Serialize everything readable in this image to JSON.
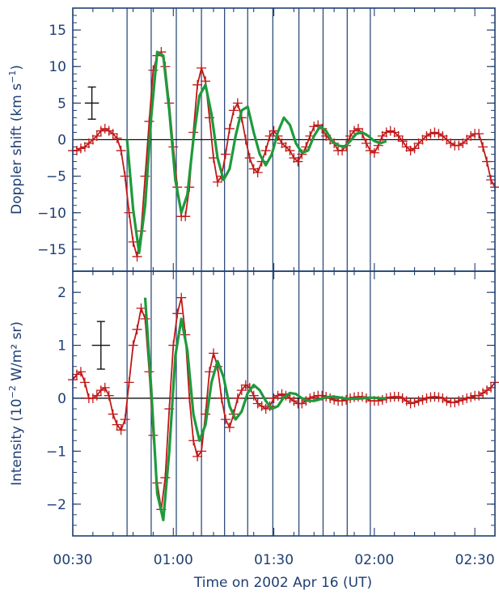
{
  "chart_data": [
    {
      "type": "line",
      "title": "",
      "ylabel_text": "Doppler shift (km s",
      "ylabel_sup": "−1",
      "ylabel_close": ")",
      "xlabel": "",
      "xlim": [
        0.0,
        2.1
      ],
      "ylim": [
        -18,
        18
      ],
      "yticks": [
        -15,
        -10,
        -5,
        0,
        5,
        10,
        15
      ],
      "ytick_labels": [
        "−15",
        "−10",
        "−5",
        "0",
        "5",
        "10",
        "15"
      ],
      "vertical_lines_x": [
        0.27,
        0.39,
        0.515,
        0.64,
        0.755,
        0.87,
        0.995,
        1.125,
        1.245,
        1.365,
        1.48
      ],
      "zero_line": true,
      "error_bar": {
        "x": 0.095,
        "y": 5,
        "yerr": 2.2,
        "xerr": 0.035
      },
      "series": [
        {
          "color": "#c01818",
          "marker": "plus",
          "style": "data",
          "x": [
            0.0,
            0.02,
            0.04,
            0.06,
            0.08,
            0.1,
            0.12,
            0.14,
            0.16,
            0.18,
            0.2,
            0.22,
            0.24,
            0.26,
            0.28,
            0.3,
            0.32,
            0.34,
            0.36,
            0.38,
            0.4,
            0.42,
            0.44,
            0.46,
            0.48,
            0.5,
            0.52,
            0.54,
            0.56,
            0.58,
            0.6,
            0.62,
            0.64,
            0.66,
            0.68,
            0.7,
            0.72,
            0.74,
            0.76,
            0.78,
            0.8,
            0.82,
            0.84,
            0.86,
            0.88,
            0.9,
            0.92,
            0.94,
            0.96,
            0.98,
            1.0,
            1.02,
            1.04,
            1.06,
            1.08,
            1.1,
            1.12,
            1.14,
            1.16,
            1.18,
            1.2,
            1.22,
            1.24,
            1.26,
            1.28,
            1.3,
            1.32,
            1.34,
            1.36,
            1.38,
            1.4,
            1.42,
            1.44,
            1.46,
            1.48,
            1.5,
            1.52,
            1.54,
            1.56,
            1.58,
            1.6,
            1.62,
            1.64,
            1.66,
            1.68,
            1.7,
            1.72,
            1.74,
            1.76,
            1.78,
            1.8,
            1.82,
            1.84,
            1.86,
            1.88,
            1.9,
            1.92,
            1.94,
            1.96,
            1.98,
            2.0,
            2.02,
            2.04,
            2.06,
            2.08,
            2.1
          ],
          "y": [
            -1.5,
            -1.5,
            -1.2,
            -1.0,
            -0.5,
            0.0,
            0.5,
            1.2,
            1.5,
            1.2,
            0.8,
            0.2,
            -1.5,
            -5.0,
            -10.0,
            -14.0,
            -16.0,
            -12.5,
            -5.0,
            2.5,
            9.5,
            11.5,
            12.0,
            10.0,
            5.0,
            -1.0,
            -6.5,
            -10.5,
            -10.5,
            -6.5,
            1.0,
            7.5,
            9.8,
            8.0,
            3.0,
            -2.5,
            -5.8,
            -5.0,
            -2.0,
            1.5,
            4.0,
            5.0,
            3.0,
            0.0,
            -2.5,
            -4.0,
            -4.5,
            -3.0,
            -1.5,
            0.5,
            1.2,
            0.5,
            -0.5,
            -1.0,
            -1.5,
            -2.5,
            -3.0,
            -2.0,
            -1.0,
            0.5,
            1.8,
            2.0,
            1.5,
            0.5,
            0.0,
            -0.5,
            -1.5,
            -1.5,
            -0.8,
            0.5,
            1.2,
            1.5,
            0.8,
            -0.5,
            -1.5,
            -1.8,
            -0.8,
            0.5,
            1.0,
            1.2,
            1.0,
            0.5,
            -0.2,
            -1.0,
            -1.5,
            -1.2,
            -0.5,
            0.0,
            0.5,
            0.8,
            1.0,
            0.8,
            0.5,
            0.0,
            -0.5,
            -0.8,
            -0.8,
            -0.5,
            0.0,
            0.5,
            0.8,
            0.8,
            -1.0,
            -3.0,
            -5.5,
            -6.5
          ]
        },
        {
          "color": "#1e9a3c",
          "style": "fit",
          "x": [
            0.27,
            0.3,
            0.33,
            0.36,
            0.39,
            0.42,
            0.45,
            0.48,
            0.51,
            0.54,
            0.57,
            0.6,
            0.63,
            0.66,
            0.69,
            0.72,
            0.75,
            0.78,
            0.81,
            0.84,
            0.87,
            0.9,
            0.93,
            0.96,
            0.99,
            1.02,
            1.05,
            1.08,
            1.11,
            1.14,
            1.17,
            1.2,
            1.23,
            1.26,
            1.29,
            1.32,
            1.35,
            1.38,
            1.41,
            1.44,
            1.47,
            1.5,
            1.53,
            1.56
          ],
          "y": [
            0.0,
            -9.5,
            -15.5,
            -9.0,
            3.0,
            12.0,
            11.5,
            4.0,
            -5.5,
            -10.0,
            -7.5,
            0.0,
            6.0,
            7.5,
            3.5,
            -2.5,
            -5.5,
            -4.0,
            0.5,
            4.0,
            4.5,
            1.0,
            -2.0,
            -3.5,
            -2.0,
            1.0,
            3.0,
            2.0,
            -0.5,
            -1.8,
            -1.5,
            0.5,
            1.8,
            1.2,
            -0.2,
            -0.8,
            -1.0,
            -0.2,
            0.8,
            1.0,
            0.5,
            -0.2,
            -0.5,
            -0.2
          ]
        }
      ]
    },
    {
      "type": "line",
      "title": "",
      "ylabel_text": "Intensity (10",
      "ylabel_sup": "−2",
      "ylabel_close": " W/m² sr)",
      "xlabel": "Time on 2002 Apr 16 (UT)",
      "xlim": [
        0.0,
        2.1
      ],
      "ylim": [
        -2.6,
        2.4
      ],
      "yticks": [
        -2,
        -1,
        0,
        1,
        2
      ],
      "ytick_labels": [
        "−2",
        "−1",
        "0",
        "1",
        "2"
      ],
      "xticks": [
        0.0,
        0.5,
        1.0,
        1.5,
        2.0
      ],
      "xtick_labels": [
        "00:30",
        "01:00",
        "01:30",
        "02:00",
        "02:30"
      ],
      "vertical_lines_x": [
        0.27,
        0.39,
        0.515,
        0.64,
        0.755,
        0.87,
        0.995,
        1.125,
        1.245,
        1.365,
        1.48
      ],
      "zero_line": true,
      "error_bar": {
        "x": 0.14,
        "y": 1.0,
        "yerr": 0.45,
        "xerr": 0.045
      },
      "series": [
        {
          "color": "#c01818",
          "marker": "plus",
          "style": "data",
          "x": [
            0.0,
            0.02,
            0.04,
            0.06,
            0.08,
            0.1,
            0.12,
            0.14,
            0.16,
            0.18,
            0.2,
            0.22,
            0.24,
            0.26,
            0.28,
            0.3,
            0.32,
            0.34,
            0.36,
            0.38,
            0.4,
            0.42,
            0.44,
            0.46,
            0.48,
            0.5,
            0.52,
            0.54,
            0.56,
            0.58,
            0.6,
            0.62,
            0.64,
            0.66,
            0.68,
            0.7,
            0.72,
            0.74,
            0.76,
            0.78,
            0.8,
            0.82,
            0.84,
            0.86,
            0.88,
            0.9,
            0.92,
            0.94,
            0.96,
            0.98,
            1.0,
            1.02,
            1.04,
            1.06,
            1.08,
            1.1,
            1.12,
            1.14,
            1.16,
            1.18,
            1.2,
            1.22,
            1.24,
            1.26,
            1.28,
            1.3,
            1.32,
            1.34,
            1.36,
            1.38,
            1.4,
            1.42,
            1.44,
            1.46,
            1.48,
            1.5,
            1.52,
            1.54,
            1.56,
            1.58,
            1.6,
            1.62,
            1.64,
            1.66,
            1.68,
            1.7,
            1.72,
            1.74,
            1.76,
            1.78,
            1.8,
            1.82,
            1.84,
            1.86,
            1.88,
            1.9,
            1.92,
            1.94,
            1.96,
            1.98,
            2.0,
            2.02,
            2.04,
            2.06,
            2.08,
            2.1
          ],
          "y": [
            0.35,
            0.45,
            0.5,
            0.3,
            0.0,
            0.0,
            0.05,
            0.15,
            0.2,
            0.05,
            -0.3,
            -0.5,
            -0.6,
            -0.4,
            0.3,
            1.0,
            1.3,
            1.7,
            1.5,
            0.5,
            -0.7,
            -1.6,
            -2.1,
            -1.5,
            -0.2,
            1.0,
            1.6,
            1.9,
            1.2,
            0.0,
            -0.8,
            -1.1,
            -1.0,
            -0.3,
            0.5,
            0.85,
            0.6,
            0.0,
            -0.4,
            -0.55,
            -0.3,
            0.0,
            0.15,
            0.25,
            0.2,
            0.05,
            -0.1,
            -0.15,
            -0.2,
            -0.15,
            0.0,
            0.05,
            0.08,
            0.05,
            0.0,
            -0.05,
            -0.1,
            -0.1,
            -0.05,
            0.0,
            0.03,
            0.05,
            0.05,
            0.03,
            0.0,
            -0.03,
            -0.05,
            -0.05,
            -0.03,
            0.0,
            0.02,
            0.03,
            0.03,
            0.0,
            -0.05,
            -0.05,
            -0.05,
            -0.03,
            0.0,
            0.02,
            0.03,
            0.03,
            0.0,
            -0.05,
            -0.1,
            -0.08,
            -0.05,
            -0.03,
            0.0,
            0.02,
            0.03,
            0.02,
            0.0,
            -0.05,
            -0.08,
            -0.08,
            -0.05,
            -0.03,
            0.0,
            0.02,
            0.05,
            0.05,
            0.1,
            0.15,
            0.2,
            0.3
          ]
        },
        {
          "color": "#1e9a3c",
          "style": "fit",
          "x": [
            0.36,
            0.39,
            0.42,
            0.45,
            0.48,
            0.51,
            0.54,
            0.57,
            0.6,
            0.63,
            0.66,
            0.69,
            0.72,
            0.75,
            0.78,
            0.81,
            0.84,
            0.87,
            0.9,
            0.93,
            0.96,
            0.99,
            1.02,
            1.05,
            1.08,
            1.11,
            1.14,
            1.17,
            1.2,
            1.23,
            1.26,
            1.29,
            1.32,
            1.35,
            1.38,
            1.41,
            1.44,
            1.47,
            1.5,
            1.53,
            1.56
          ],
          "y": [
            1.9,
            0.2,
            -1.8,
            -2.3,
            -1.0,
            0.8,
            1.5,
            0.9,
            -0.3,
            -0.8,
            -0.5,
            0.3,
            0.7,
            0.4,
            -0.15,
            -0.4,
            -0.25,
            0.1,
            0.25,
            0.15,
            -0.05,
            -0.2,
            -0.15,
            0.02,
            0.1,
            0.08,
            0.0,
            -0.05,
            -0.05,
            -0.02,
            0.02,
            0.03,
            0.02,
            0.0,
            -0.01,
            -0.01,
            0.0,
            0.01,
            0.01,
            0.0,
            0.0
          ]
        }
      ]
    }
  ]
}
